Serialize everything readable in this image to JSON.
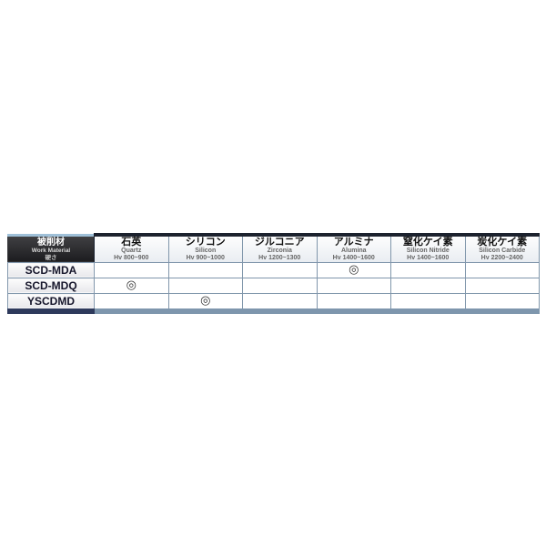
{
  "table": {
    "corner_header": {
      "title_ja": "被削材",
      "title_en": "Work Material",
      "subtitle": "硬さ"
    },
    "columns": [
      {
        "ja": "石英",
        "en": "Quartz",
        "hardness": "Hv 800~900"
      },
      {
        "ja": "シリコン",
        "en": "Silicon",
        "hardness": "Hv 900~1000"
      },
      {
        "ja": "ジルコニア",
        "en": "Zirconia",
        "hardness": "Hv 1200~1300"
      },
      {
        "ja": "アルミナ",
        "en": "Alumina",
        "hardness": "Hv 1400~1600"
      },
      {
        "ja": "窒化ケイ素",
        "en": "Silicon Nitride",
        "hardness": "Hv 1400~1600"
      },
      {
        "ja": "炭化ケイ素",
        "en": "Silicon Carbide",
        "hardness": "Hv 2200~2400"
      }
    ],
    "rows": [
      {
        "label": "SCD-MDA",
        "cells": [
          "",
          "",
          "",
          "◎",
          "",
          ""
        ]
      },
      {
        "label": "SCD-MDQ",
        "cells": [
          "◎",
          "",
          "",
          "",
          "",
          ""
        ]
      },
      {
        "label": "YSCDMD",
        "cells": [
          "",
          "◎",
          "",
          "",
          "",
          ""
        ]
      }
    ],
    "colors": {
      "grid_border": "#8096ab",
      "header_top_bar": "#1c222e",
      "corner_top_bar": "#9fc0d8",
      "corner_background": "#2a2a2d",
      "bottom_bar_left": "#2e3a5c",
      "bottom_bar_right": "#7e96ad",
      "page_background": "#ffffff"
    }
  }
}
